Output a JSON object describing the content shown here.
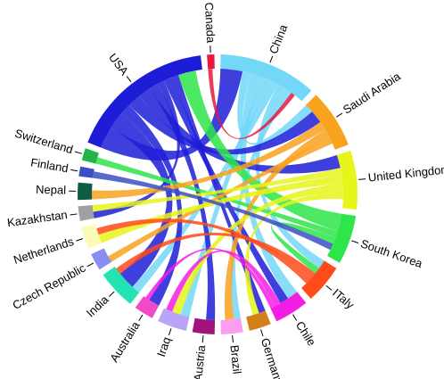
{
  "chart_data": {
    "type": "chord",
    "categories": [
      "China",
      "Saudi Arabia",
      "United Kingdom",
      "South Korea",
      "ITaly",
      "Chile",
      "Germany",
      "Brazil",
      "Austria",
      "Iraq",
      "Australia",
      "India",
      "Czech Republic",
      "Netherlands",
      "Kazakhstan",
      "Nepal",
      "Finland",
      "Switzerland",
      "USA",
      "Canada"
    ],
    "values": [
      40,
      24,
      24,
      20,
      16,
      14,
      9,
      9,
      9,
      12,
      8,
      16,
      7,
      9,
      6,
      7,
      4,
      5,
      60,
      3
    ],
    "colors": [
      "#73d7f8",
      "#f9a21e",
      "#e6f51a",
      "#2ee54a",
      "#ff4a1a",
      "#f41de6",
      "#d2811a",
      "#fb9ef0",
      "#a1127c",
      "#b9a4f5",
      "#f04ac9",
      "#22e4b3",
      "#8a8ef0",
      "#fbfbb8",
      "#a0a0a0",
      "#0e5e46",
      "#3a4fc4",
      "#21b54a",
      "#1d1dd8",
      "#e8173f"
    ],
    "links": [
      {
        "source": "USA",
        "target": "China",
        "value": 10
      },
      {
        "source": "China",
        "target": "Saudi Arabia",
        "value": 4
      },
      {
        "source": "China",
        "target": "Chile",
        "value": 5
      },
      {
        "source": "China",
        "target": "Iraq",
        "value": 4
      },
      {
        "source": "China",
        "target": "India",
        "value": 4
      },
      {
        "source": "China",
        "target": "ITaly",
        "value": 4
      },
      {
        "source": "China",
        "target": "Brazil",
        "value": 3
      },
      {
        "source": "USA",
        "target": "India",
        "value": 8
      },
      {
        "source": "USA",
        "target": "Australia",
        "value": 5
      },
      {
        "source": "USA",
        "target": "Saudi Arabia",
        "value": 6
      },
      {
        "source": "USA",
        "target": "United Kingdom",
        "value": 6
      },
      {
        "source": "USA",
        "target": "Austria",
        "value": 4
      },
      {
        "source": "USA",
        "target": "Kazakhstan",
        "value": 3
      },
      {
        "source": "USA",
        "target": "Chile",
        "value": 4
      },
      {
        "source": "USA",
        "target": "Germany",
        "value": 3
      },
      {
        "source": "South Korea",
        "target": "USA",
        "value": 8
      },
      {
        "source": "South Korea",
        "target": "Switzerland",
        "value": 3
      },
      {
        "source": "South Korea",
        "target": "ITaly",
        "value": 3
      },
      {
        "source": "Saudi Arabia",
        "target": "Nepal",
        "value": 4
      },
      {
        "source": "Saudi Arabia",
        "target": "Brazil",
        "value": 4
      },
      {
        "source": "Saudi Arabia",
        "target": "Czech Republic",
        "value": 3
      },
      {
        "source": "United Kingdom",
        "target": "Kazakhstan",
        "value": 3
      },
      {
        "source": "United Kingdom",
        "target": "Netherlands",
        "value": 4
      },
      {
        "source": "United Kingdom",
        "target": "Iraq",
        "value": 4
      },
      {
        "source": "United Kingdom",
        "target": "Germany",
        "value": 3
      },
      {
        "source": "ITaly",
        "target": "India",
        "value": 3
      },
      {
        "source": "ITaly",
        "target": "Netherlands",
        "value": 3
      },
      {
        "source": "Chile",
        "target": "Iraq",
        "value": 3
      },
      {
        "source": "Chile",
        "target": "Australia",
        "value": 2
      },
      {
        "source": "Finland",
        "target": "South Korea",
        "value": 3
      },
      {
        "source": "Canada",
        "target": "China",
        "value": 2
      }
    ]
  }
}
